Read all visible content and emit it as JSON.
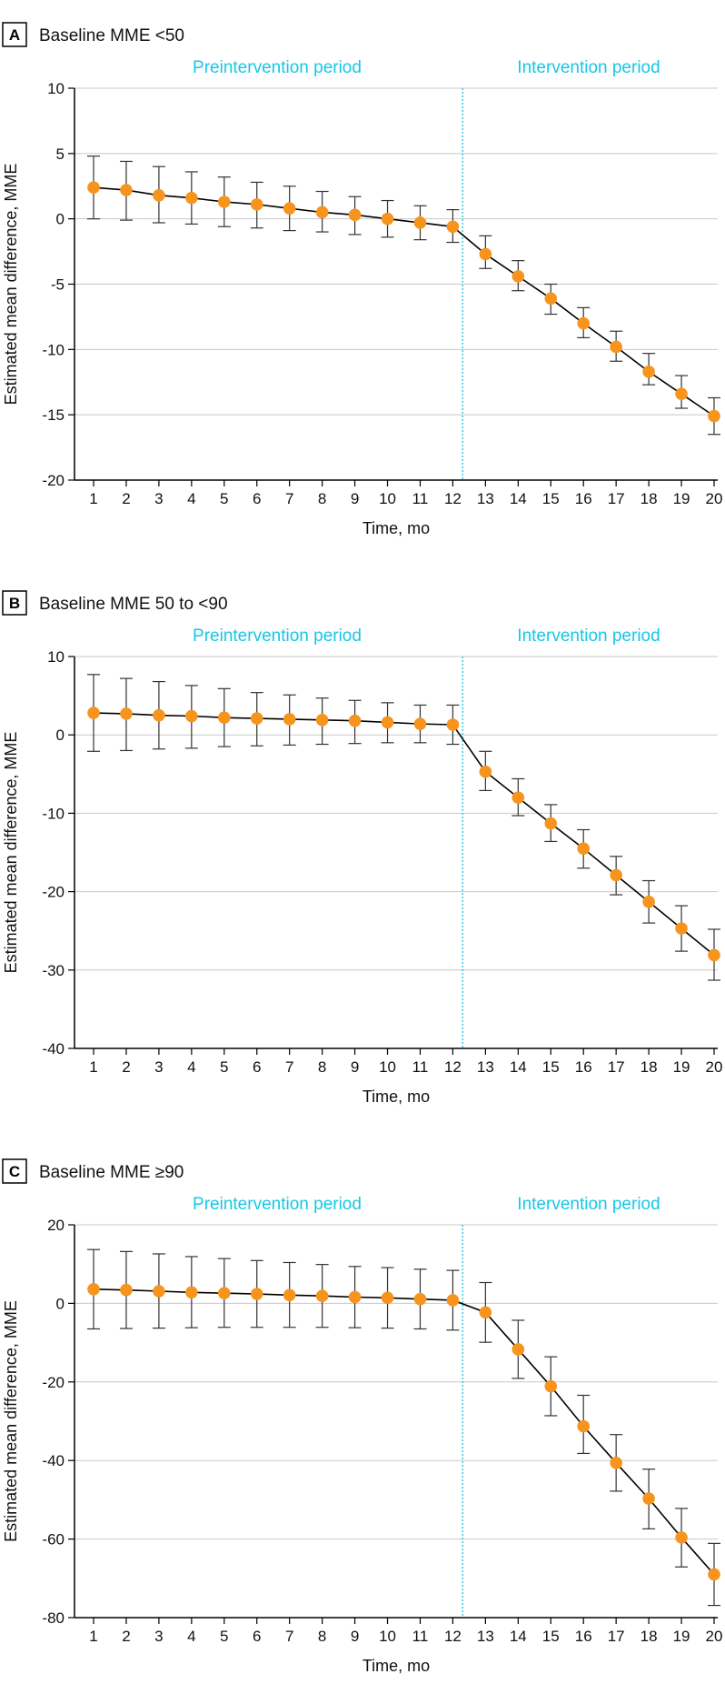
{
  "colors": {
    "marker": "#F7941D",
    "line": "#000000",
    "grid": "#C8C8C8",
    "period_label": "#17C6E6",
    "divider": "#17C6E6",
    "errorbar": "#333333"
  },
  "chart_data": [
    {
      "type": "line",
      "panel": "A",
      "title": "Baseline MME <50",
      "xlabel": "Time, mo",
      "ylabel": "Estimated mean difference, MME",
      "ylim": [
        -20,
        10
      ],
      "yticks": [
        10,
        5,
        0,
        -5,
        -10,
        -15,
        -20
      ],
      "ytick_labels": [
        "10",
        "5",
        "0",
        "-5",
        "-10",
        "-15",
        "-20"
      ],
      "x": [
        1,
        2,
        3,
        4,
        5,
        6,
        7,
        8,
        9,
        10,
        11,
        12,
        13,
        14,
        15,
        16,
        17,
        18,
        19,
        20
      ],
      "xtick_labels": [
        "1",
        "2",
        "3",
        "4",
        "5",
        "6",
        "7",
        "8",
        "9",
        "10",
        "11",
        "12",
        "13",
        "14",
        "15",
        "16",
        "17",
        "18",
        "19",
        "20"
      ],
      "y": [
        2.4,
        2.2,
        1.8,
        1.6,
        1.3,
        1.1,
        0.8,
        0.5,
        0.3,
        0.0,
        -0.3,
        -0.6,
        -2.7,
        -4.4,
        -6.1,
        -8.0,
        -9.8,
        -11.7,
        -13.4,
        -15.1
      ],
      "ci_low": [
        0.0,
        -0.1,
        -0.3,
        -0.4,
        -0.6,
        -0.7,
        -0.9,
        -1.0,
        -1.2,
        -1.4,
        -1.6,
        -1.8,
        -3.8,
        -5.5,
        -7.3,
        -9.1,
        -10.9,
        -12.7,
        -14.5,
        -16.5
      ],
      "ci_high": [
        4.8,
        4.4,
        4.0,
        3.6,
        3.2,
        2.8,
        2.5,
        2.1,
        1.7,
        1.4,
        1.0,
        0.7,
        -1.3,
        -3.2,
        -5.0,
        -6.8,
        -8.6,
        -10.3,
        -12.0,
        -13.7
      ],
      "divider_x": 12.3,
      "periods": [
        "Preintervention period",
        "Intervention period"
      ]
    },
    {
      "type": "line",
      "panel": "B",
      "title": "Baseline MME 50 to <90",
      "xlabel": "Time, mo",
      "ylabel": "Estimated mean difference, MME",
      "ylim": [
        -40,
        10
      ],
      "yticks": [
        10,
        0,
        -10,
        -20,
        -30,
        -40
      ],
      "ytick_labels": [
        "10",
        "0",
        "-10",
        "-20",
        "-30",
        "-40"
      ],
      "x": [
        1,
        2,
        3,
        4,
        5,
        6,
        7,
        8,
        9,
        10,
        11,
        12,
        13,
        14,
        15,
        16,
        17,
        18,
        19,
        20
      ],
      "xtick_labels": [
        "1",
        "2",
        "3",
        "4",
        "5",
        "6",
        "7",
        "8",
        "9",
        "10",
        "11",
        "12",
        "13",
        "14",
        "15",
        "16",
        "17",
        "18",
        "19",
        "20"
      ],
      "y": [
        2.8,
        2.7,
        2.5,
        2.4,
        2.2,
        2.1,
        2.0,
        1.9,
        1.8,
        1.6,
        1.4,
        1.3,
        -4.7,
        -8.0,
        -11.3,
        -14.5,
        -17.9,
        -21.3,
        -24.7,
        -28.1
      ],
      "ci_low": [
        -2.1,
        -2.0,
        -1.8,
        -1.7,
        -1.5,
        -1.4,
        -1.3,
        -1.2,
        -1.1,
        -1.0,
        -1.0,
        -1.2,
        -7.1,
        -10.3,
        -13.6,
        -17.0,
        -20.4,
        -24.0,
        -27.6,
        -31.3
      ],
      "ci_high": [
        7.7,
        7.2,
        6.8,
        6.3,
        5.9,
        5.4,
        5.1,
        4.7,
        4.4,
        4.1,
        3.8,
        3.8,
        -2.1,
        -5.6,
        -8.9,
        -12.1,
        -15.5,
        -18.6,
        -21.8,
        -24.8
      ],
      "divider_x": 12.3,
      "periods": [
        "Preintervention period",
        "Intervention period"
      ]
    },
    {
      "type": "line",
      "panel": "C",
      "title": "Baseline MME ≥90",
      "xlabel": "Time, mo",
      "ylabel": "Estimated mean difference, MME",
      "ylim": [
        -80,
        20
      ],
      "yticks": [
        20,
        0,
        -20,
        -40,
        -60,
        -80
      ],
      "ytick_labels": [
        "20",
        "0",
        "-20",
        "-40",
        "-60",
        "-80"
      ],
      "x": [
        1,
        2,
        3,
        4,
        5,
        6,
        7,
        8,
        9,
        10,
        11,
        12,
        13,
        14,
        15,
        16,
        17,
        18,
        19,
        20
      ],
      "xtick_labels": [
        "1",
        "2",
        "3",
        "4",
        "5",
        "6",
        "7",
        "8",
        "9",
        "10",
        "11",
        "12",
        "13",
        "14",
        "15",
        "16",
        "17",
        "18",
        "19",
        "20"
      ],
      "y": [
        3.6,
        3.4,
        3.1,
        2.8,
        2.6,
        2.4,
        2.1,
        1.9,
        1.6,
        1.4,
        1.1,
        0.8,
        -2.3,
        -11.7,
        -21.1,
        -31.3,
        -40.6,
        -49.7,
        -59.6,
        -69.0
      ],
      "ci_low": [
        -6.5,
        -6.4,
        -6.3,
        -6.2,
        -6.1,
        -6.1,
        -6.1,
        -6.1,
        -6.2,
        -6.3,
        -6.5,
        -6.8,
        -9.9,
        -19.1,
        -28.6,
        -38.2,
        -47.8,
        -57.4,
        -67.1,
        -76.9
      ],
      "ci_high": [
        13.7,
        13.2,
        12.6,
        11.9,
        11.4,
        10.9,
        10.4,
        9.9,
        9.4,
        9.1,
        8.7,
        8.4,
        5.3,
        -4.3,
        -13.6,
        -23.4,
        -33.4,
        -42.2,
        -52.2,
        -61.1
      ],
      "divider_x": 12.3,
      "periods": [
        "Preintervention period",
        "Intervention period"
      ]
    }
  ]
}
